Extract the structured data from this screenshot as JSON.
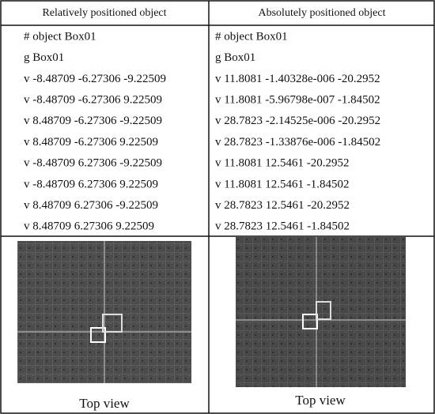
{
  "table": {
    "headers": [
      "Relatively positioned object",
      "Absolutely positioned object"
    ],
    "rows": [
      [
        "# object Box01",
        "# object Box01"
      ],
      [
        "g Box01",
        "g Box01"
      ],
      [
        "v -8.48709 -6.27306 -9.22509",
        "v 11.8081 -1.40328e-006 -20.2952"
      ],
      [
        "v -8.48709 -6.27306 9.22509",
        "v 11.8081 -5.96798e-007 -1.84502"
      ],
      [
        "v 8.48709 -6.27306 -9.22509",
        "v 28.7823 -2.14525e-006 -20.2952"
      ],
      [
        "v 8.48709 -6.27306 9.22509",
        "v 28.7823 -1.33876e-006 -1.84502"
      ],
      [
        "v -8.48709 6.27306 -9.22509",
        "v 11.8081 12.5461 -20.2952"
      ],
      [
        "v -8.48709 6.27306 9.22509",
        "v 11.8081 12.5461 -1.84502"
      ],
      [
        "v 8.48709 6.27306 -9.22509",
        "v 28.7823 12.5461 -20.2952"
      ],
      [
        "v 8.48709 6.27306 9.22509",
        "v 28.7823 12.5461 -1.84502"
      ]
    ],
    "captions": [
      "Top view",
      "Top view"
    ]
  }
}
